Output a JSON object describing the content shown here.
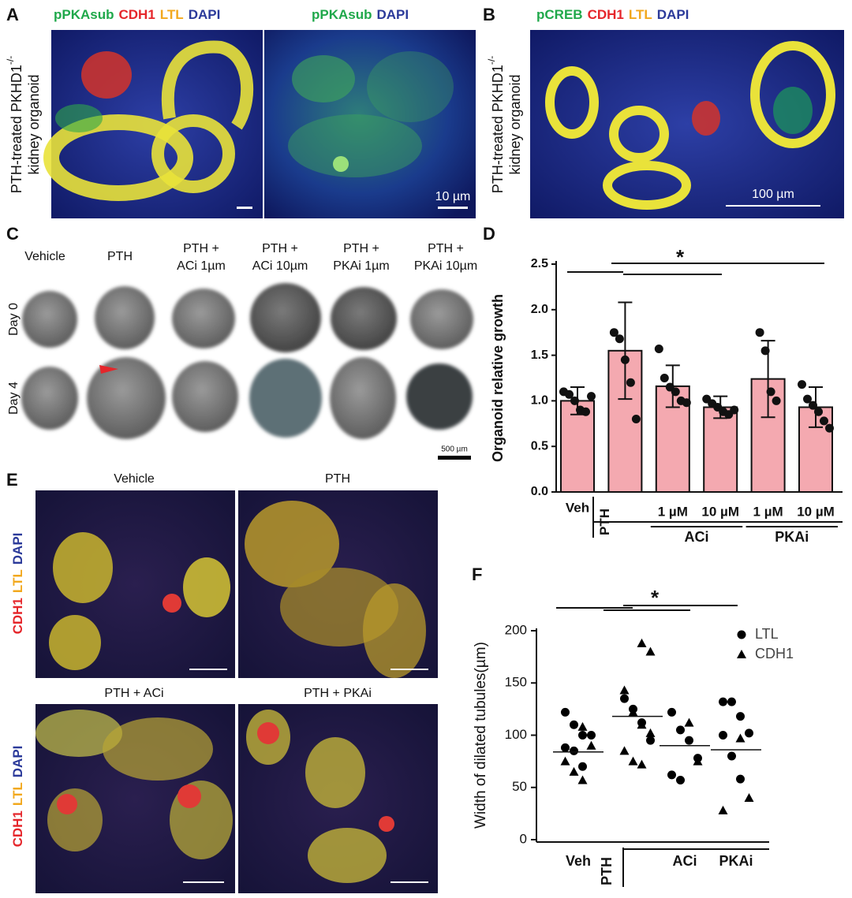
{
  "figure": {
    "A": {
      "letter": "A",
      "titles": [
        [
          {
            "text": "pPKAsub",
            "color": "#1fa84a"
          },
          {
            "text": "CDH1",
            "color": "#e5262b"
          },
          {
            "text": "LTL",
            "color": "#f2a81d"
          },
          {
            "text": "DAPI",
            "color": "#2b3a9a"
          }
        ],
        [
          {
            "text": "pPKAsub",
            "color": "#1fa84a"
          },
          {
            "text": "DAPI",
            "color": "#2b3a9a"
          }
        ]
      ],
      "side": [
        "PTH-treated PKHD1",
        "-/-",
        "kidney organoid"
      ],
      "scale": "10 µm"
    },
    "B": {
      "letter": "B",
      "titles": [
        [
          {
            "text": "pCREB",
            "color": "#1fa84a"
          },
          {
            "text": "CDH1",
            "color": "#e5262b"
          },
          {
            "text": "LTL",
            "color": "#f2a81d"
          },
          {
            "text": "DAPI",
            "color": "#2b3a9a"
          }
        ]
      ],
      "side": [
        "PTH-treated PKHD1",
        "-/-",
        "kidney organoid"
      ],
      "scale": "100 µm"
    },
    "C": {
      "letter": "C",
      "columns": [
        [
          "Vehicle"
        ],
        [
          "PTH"
        ],
        [
          "PTH +",
          "ACi 1µm"
        ],
        [
          "PTH +",
          "ACi 10µm"
        ],
        [
          "PTH +",
          "PKAi 1µm"
        ],
        [
          "PTH +",
          "PKAi 10µm"
        ]
      ],
      "rows": [
        "Day 0",
        "Day 4"
      ],
      "scale": "500 µm"
    },
    "E": {
      "letter": "E",
      "titles": [
        "Vehicle",
        "PTH",
        "PTH + ACi",
        "PTH + PKAi"
      ],
      "side": [
        {
          "text": "CDH1",
          "color": "#e5262b"
        },
        {
          "text": "LTL",
          "color": "#f2a81d"
        },
        {
          "text": "DAPI",
          "color": "#2b3a9a"
        }
      ]
    }
  },
  "chart_data": [
    {
      "type": "bar",
      "letter": "D",
      "ylabel": "Organoid relative growth",
      "categories": [
        "Veh",
        "PTH",
        "1 µM",
        "10 µM",
        "1 µM",
        "10 µM"
      ],
      "groups": [
        "ACi",
        "PKAi"
      ],
      "values": [
        1.0,
        1.55,
        1.16,
        0.93,
        1.24,
        0.93
      ],
      "errors": [
        0.15,
        0.53,
        0.23,
        0.12,
        0.42,
        0.22
      ],
      "points": [
        [
          1.1,
          1.07,
          1.0,
          0.9,
          0.88,
          1.05
        ],
        [
          1.75,
          1.68,
          1.45,
          1.2,
          0.8
        ],
        [
          1.57,
          1.25,
          1.15,
          1.1,
          1.0,
          0.98
        ],
        [
          1.02,
          0.97,
          0.93,
          0.88,
          0.85,
          0.9
        ],
        [
          1.75,
          1.55,
          1.1,
          1.0
        ],
        [
          1.18,
          1.02,
          0.95,
          0.88,
          0.78,
          0.7
        ]
      ],
      "color": "#f4a9b0",
      "ylim": [
        0,
        2.5
      ],
      "yticks": [
        {
          "value": 0,
          "label": "0.0"
        },
        0.5,
        {
          "value": 1,
          "label": "1.0"
        },
        1.5,
        {
          "value": 2,
          "label": "2.0"
        },
        2.5
      ],
      "annotation": "*"
    },
    {
      "type": "scatter",
      "letter": "F",
      "ylabel": "Width of dilated tubules(µm)",
      "categories": [
        "Veh",
        "PTH",
        "ACi",
        "PKAi"
      ],
      "means": [
        84,
        118,
        90,
        86
      ],
      "series": [
        {
          "name": "LTL",
          "marker": "circle",
          "color": "#000000",
          "values": [
            [
              122,
              110,
              100,
              100,
              88,
              85,
              70
            ],
            [
              135,
              125,
              112,
              95
            ],
            [
              122,
              105,
              95,
              78,
              62,
              57
            ],
            [
              132,
              132,
              118,
              102,
              100,
              80,
              58
            ]
          ]
        },
        {
          "name": "CDH1",
          "marker": "triangle",
          "color": "#000000",
          "values": [
            [
              108,
              90,
              75,
              65,
              57
            ],
            [
              188,
              180,
              143,
              122,
              110,
              102,
              85,
              75,
              72
            ],
            [
              112,
              75
            ],
            [
              97,
              40,
              28
            ]
          ]
        }
      ],
      "ylim": [
        0,
        200
      ],
      "yticks": [
        0,
        50,
        100,
        150,
        200
      ],
      "annotation": "*",
      "legend": "upper right"
    }
  ]
}
